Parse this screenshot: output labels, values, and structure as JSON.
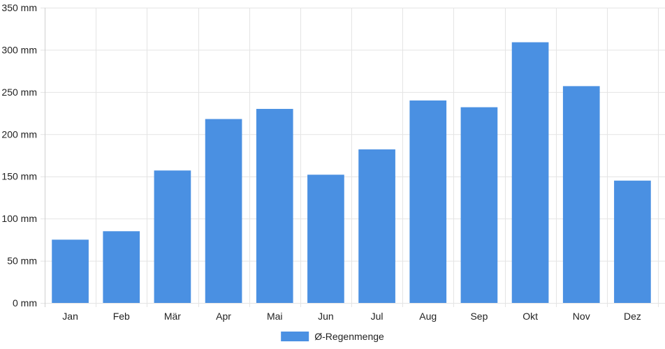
{
  "chart_data": {
    "type": "bar",
    "categories": [
      "Jan",
      "Feb",
      "Mär",
      "Apr",
      "Mai",
      "Jun",
      "Jul",
      "Aug",
      "Sep",
      "Okt",
      "Nov",
      "Dez"
    ],
    "series": [
      {
        "name": "Ø-Regenmenge",
        "values": [
          75,
          85,
          157,
          218,
          230,
          152,
          182,
          240,
          232,
          309,
          257,
          145
        ],
        "color": "#4a90e2"
      }
    ],
    "ylim": [
      0,
      350
    ],
    "yticks": [
      0,
      50,
      100,
      150,
      200,
      250,
      300,
      350
    ],
    "y_unit": "mm",
    "grid": true,
    "legend": "bottom-center"
  }
}
